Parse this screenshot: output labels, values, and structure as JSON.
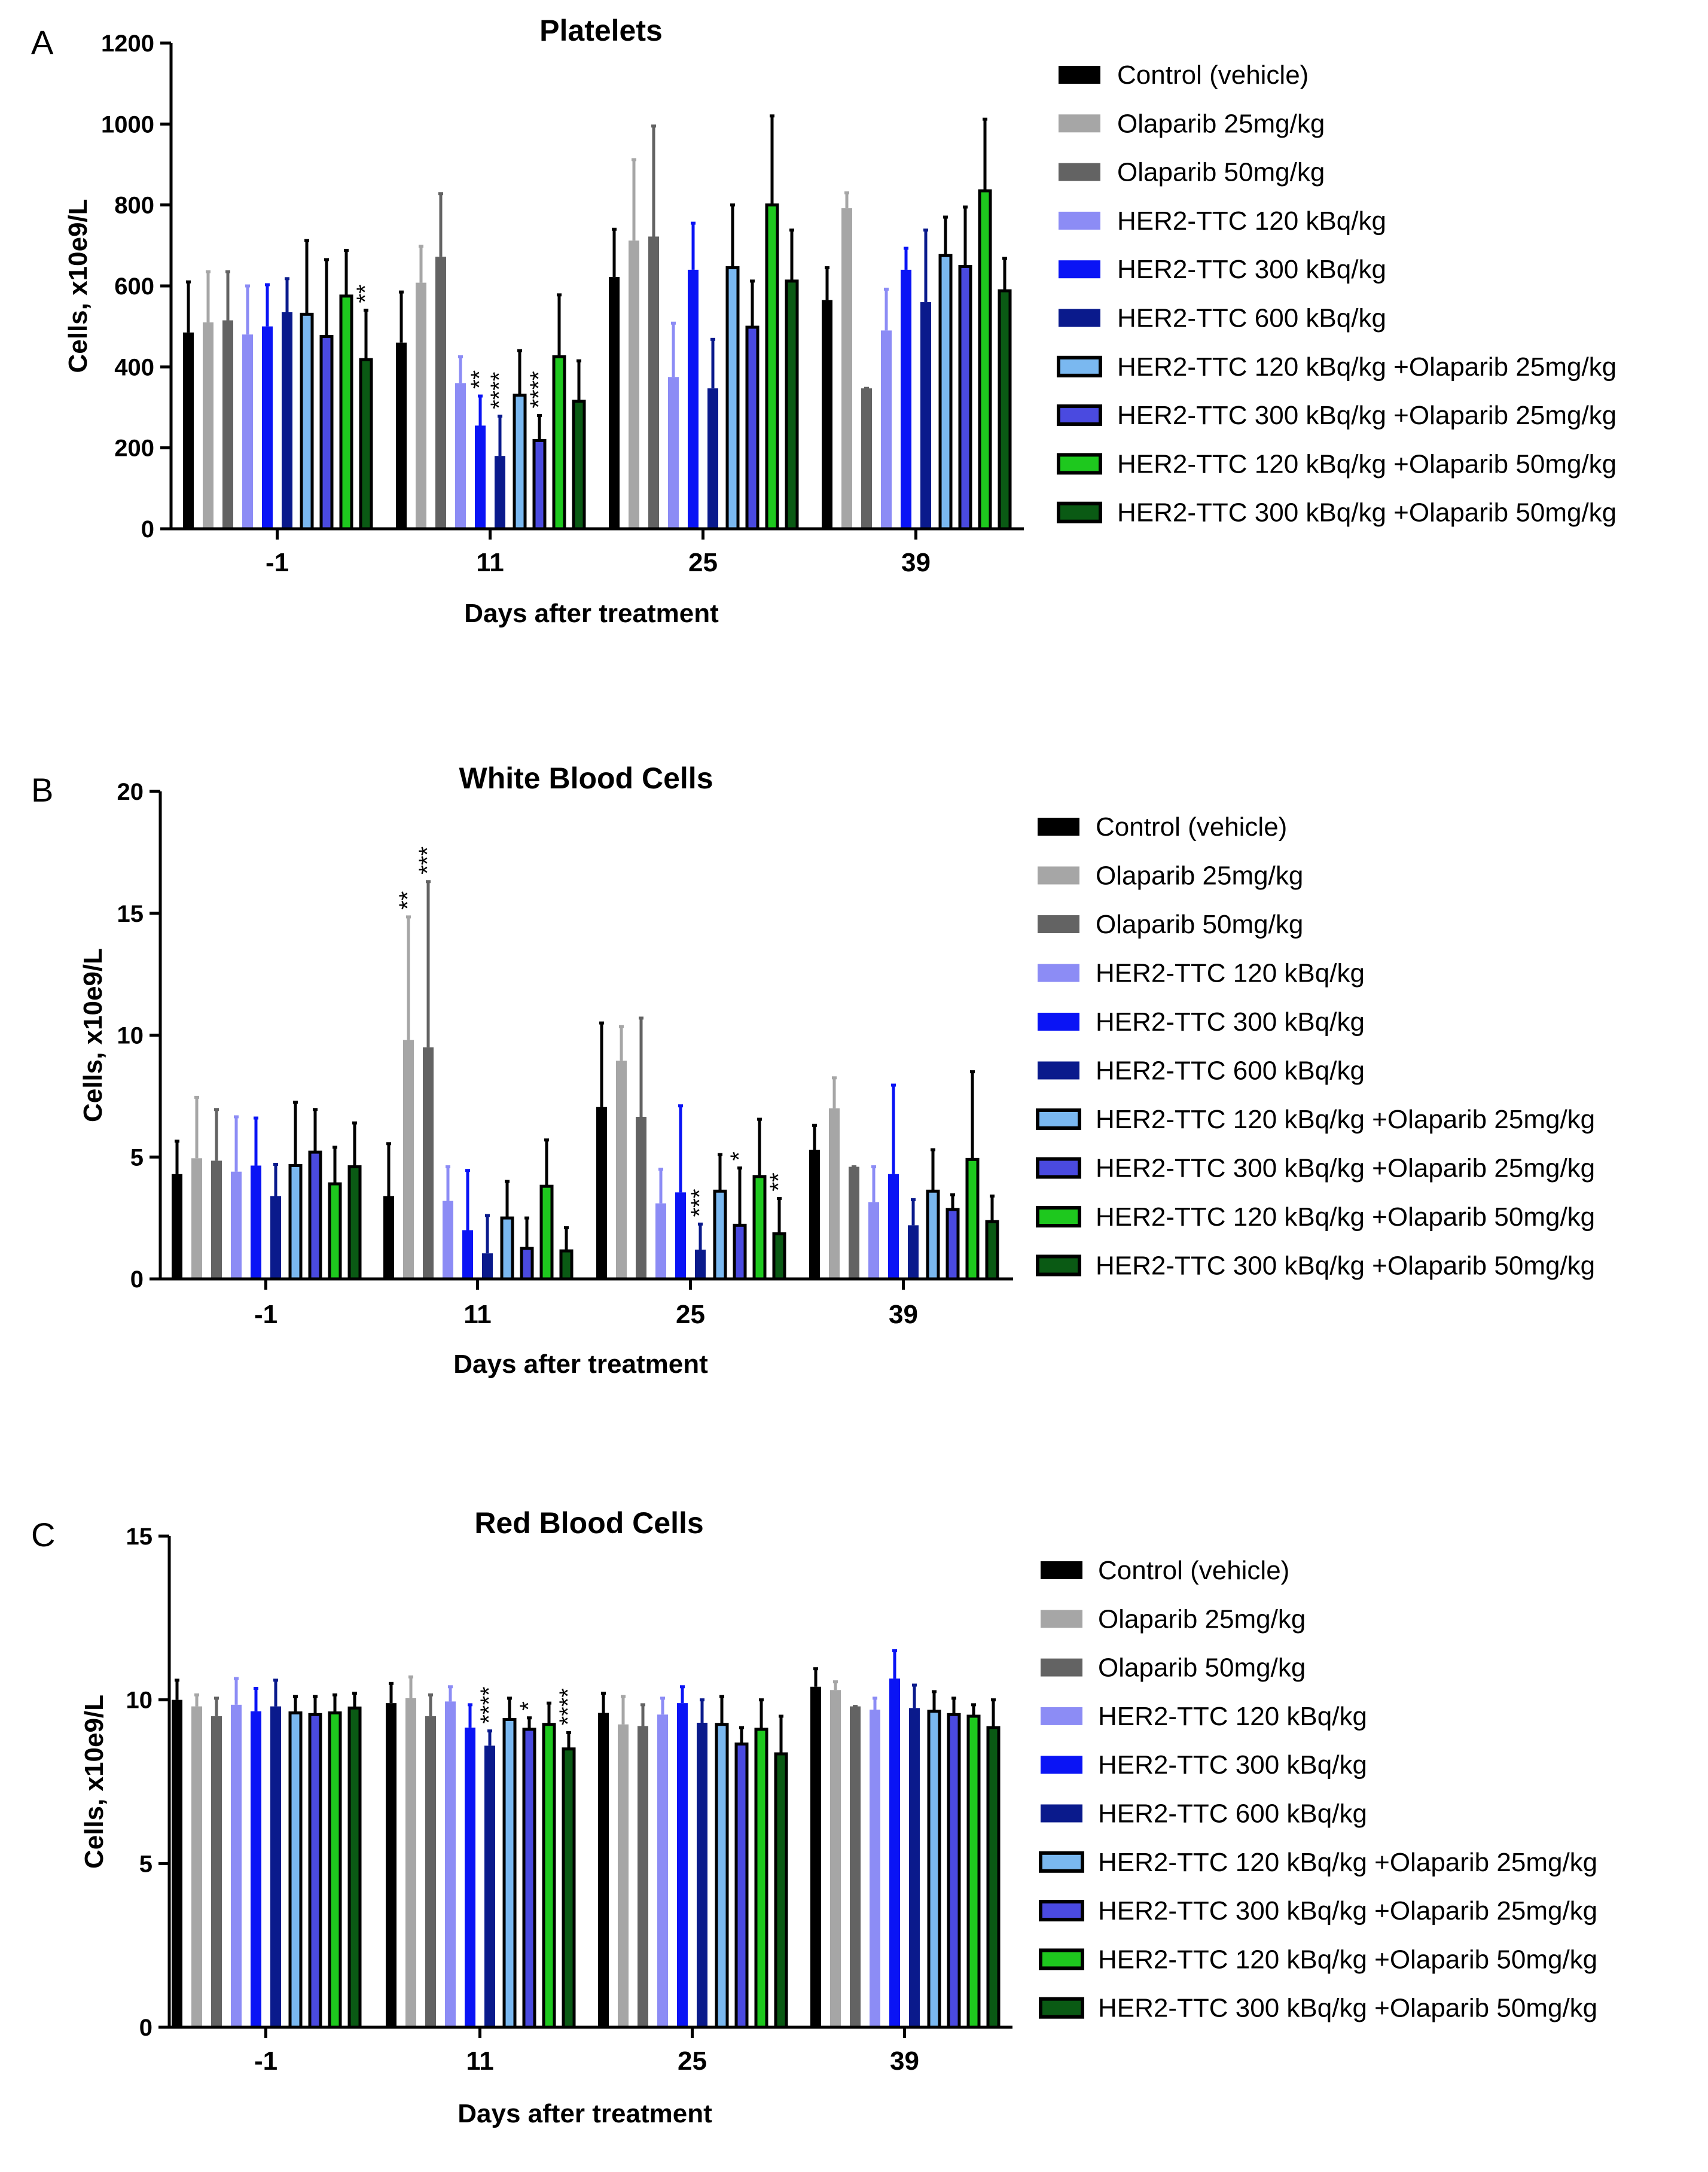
{
  "legend": [
    {
      "label": "Control (vehicle)",
      "fill": "#000000",
      "stroke": "#000000"
    },
    {
      "label": "Olaparib 25mg/kg",
      "fill": "#a6a6a6",
      "stroke": "#a6a6a6"
    },
    {
      "label": "Olaparib 50mg/kg",
      "fill": "#636363",
      "stroke": "#636363"
    },
    {
      "label": "HER2-TTC 120 kBq/kg",
      "fill": "#8c8cf5",
      "stroke": "#8c8cf5"
    },
    {
      "label": "HER2-TTC 300 kBq/kg",
      "fill": "#0a14f5",
      "stroke": "#0a14f5"
    },
    {
      "label": "HER2-TTC 600 kBq/kg",
      "fill": "#0a1a8c",
      "stroke": "#0a1a8c"
    },
    {
      "label": "HER2-TTC 120 kBq/kg +Olaparib 25mg/kg",
      "fill": "#7ab8f0",
      "stroke": "#000000"
    },
    {
      "label": "HER2-TTC 300 kBq/kg +Olaparib 25mg/kg",
      "fill": "#4a4ae0",
      "stroke": "#000000"
    },
    {
      "label": "HER2-TTC 120 kBq/kg +Olaparib 50mg/kg",
      "fill": "#1ec81e",
      "stroke": "#000000"
    },
    {
      "label": "HER2-TTC 300 kBq/kg +Olaparib 50mg/kg",
      "fill": "#0a5a14",
      "stroke": "#000000"
    }
  ],
  "chart_data": [
    {
      "panel": "A",
      "type": "bar",
      "title": "Platelets",
      "xlabel": "Days after treatment",
      "ylabel": "Cells, x10e9/L",
      "ylim": [
        0,
        1200
      ],
      "yticks": [
        0,
        200,
        400,
        600,
        800,
        1000,
        1200
      ],
      "categories": [
        "-1",
        "11",
        "25",
        "39"
      ],
      "values": [
        [
          485,
          510,
          515,
          480,
          500,
          535,
          530,
          475,
          575,
          418
        ],
        [
          460,
          608,
          672,
          360,
          255,
          180,
          330,
          218,
          425,
          315
        ],
        [
          622,
          712,
          722,
          375,
          640,
          347,
          645,
          498,
          800,
          612
        ],
        [
          565,
          792,
          347,
          490,
          640,
          560,
          675,
          648,
          835,
          588
        ]
      ],
      "errors": [
        [
          610,
          635,
          635,
          600,
          603,
          618,
          712,
          665,
          688,
          540
        ],
        [
          585,
          698,
          828,
          425,
          328,
          278,
          440,
          280,
          578,
          415
        ],
        [
          740,
          912,
          995,
          508,
          755,
          468,
          800,
          612,
          1020,
          738
        ],
        [
          645,
          830,
          347,
          592,
          693,
          738,
          770,
          795,
          1012,
          668
        ]
      ],
      "annotations": [
        {
          "category": "-1",
          "series": 9,
          "text": "**"
        },
        {
          "category": "11",
          "series": 4,
          "text": "**"
        },
        {
          "category": "11",
          "series": 5,
          "text": "****"
        },
        {
          "category": "11",
          "series": 7,
          "text": "****"
        }
      ]
    },
    {
      "panel": "B",
      "type": "bar",
      "title": "White Blood Cells",
      "xlabel": "Days after treatment",
      "ylabel": "Cells, x10e9/L",
      "ylim": [
        0,
        20
      ],
      "yticks": [
        0,
        5,
        10,
        15,
        20
      ],
      "categories": [
        "-1",
        "11",
        "25",
        "39"
      ],
      "values": [
        [
          4.3,
          4.95,
          4.85,
          4.4,
          4.65,
          3.4,
          4.65,
          5.2,
          3.9,
          4.6
        ],
        [
          3.4,
          9.8,
          9.5,
          3.2,
          2.0,
          1.05,
          2.5,
          1.25,
          3.8,
          1.15
        ],
        [
          7.05,
          8.95,
          6.65,
          3.1,
          3.55,
          1.2,
          3.6,
          2.2,
          4.2,
          1.85
        ],
        [
          5.3,
          7.0,
          4.6,
          3.15,
          4.3,
          2.2,
          3.6,
          2.85,
          4.9,
          2.35
        ]
      ],
      "errors": [
        [
          5.65,
          7.45,
          6.95,
          6.65,
          6.6,
          4.7,
          7.25,
          6.95,
          5.4,
          6.4
        ],
        [
          5.55,
          14.85,
          16.3,
          4.6,
          4.45,
          2.6,
          4.0,
          2.5,
          5.7,
          2.1
        ],
        [
          10.5,
          10.35,
          10.7,
          4.5,
          7.1,
          2.25,
          5.1,
          4.55,
          6.55,
          3.3
        ],
        [
          6.3,
          8.25,
          4.6,
          4.6,
          7.95,
          3.25,
          5.3,
          3.45,
          8.5,
          3.4
        ]
      ],
      "annotations": [
        {
          "category": "11",
          "series": 1,
          "text": "**"
        },
        {
          "category": "11",
          "series": 2,
          "text": "***"
        },
        {
          "category": "25",
          "series": 5,
          "text": "***"
        },
        {
          "category": "25",
          "series": 7,
          "text": "*"
        },
        {
          "category": "25",
          "series": 9,
          "text": "**"
        }
      ]
    },
    {
      "panel": "C",
      "type": "bar",
      "title": "Red Blood Cells",
      "xlabel": "Days after treatment",
      "ylabel": "Cells, x10e9/L",
      "ylim": [
        0,
        15
      ],
      "yticks": [
        0,
        5,
        10,
        15
      ],
      "categories": [
        "-1",
        "11",
        "25",
        "39"
      ],
      "values": [
        [
          10.0,
          9.8,
          9.5,
          9.85,
          9.65,
          9.8,
          9.6,
          9.55,
          9.6,
          9.75
        ],
        [
          9.9,
          10.05,
          9.5,
          9.95,
          9.15,
          8.6,
          9.4,
          9.1,
          9.25,
          8.5
        ],
        [
          9.6,
          9.25,
          9.2,
          9.55,
          9.9,
          9.3,
          9.25,
          8.65,
          9.1,
          8.35
        ],
        [
          10.4,
          10.3,
          9.8,
          9.7,
          10.65,
          9.75,
          9.65,
          9.55,
          9.5,
          9.15
        ]
      ],
      "errors": [
        [
          10.6,
          10.15,
          10.05,
          10.65,
          10.35,
          10.6,
          10.1,
          10.1,
          10.15,
          10.2
        ],
        [
          10.5,
          10.7,
          10.15,
          10.4,
          9.85,
          9.05,
          10.05,
          9.45,
          9.9,
          9.0
        ],
        [
          10.2,
          10.1,
          9.85,
          10.05,
          10.4,
          10.0,
          10.1,
          9.15,
          10.0,
          9.5
        ],
        [
          10.95,
          10.55,
          9.8,
          10.05,
          11.5,
          10.45,
          10.25,
          10.05,
          9.85,
          10.0
        ]
      ],
      "annotations": [
        {
          "category": "11",
          "series": 5,
          "text": "****"
        },
        {
          "category": "11",
          "series": 7,
          "text": "*"
        },
        {
          "category": "11",
          "series": 9,
          "text": "****"
        }
      ]
    }
  ]
}
